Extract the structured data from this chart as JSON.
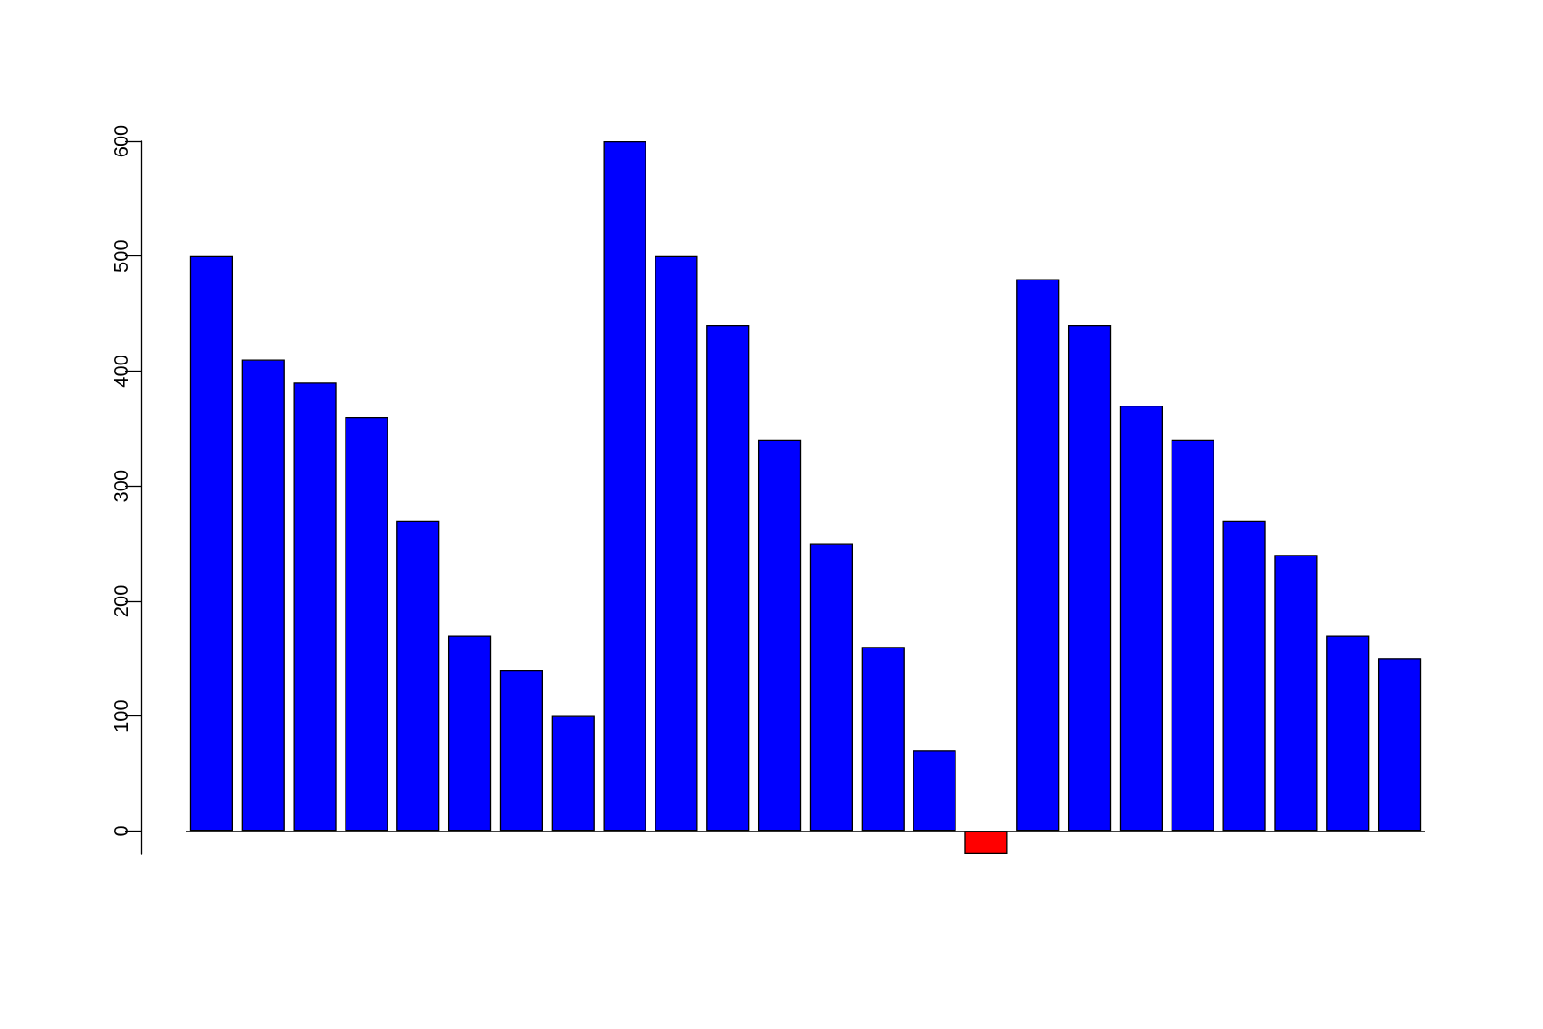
{
  "chart_data": {
    "type": "bar",
    "categories": [
      null,
      null,
      null,
      null,
      null,
      null,
      null,
      null,
      null,
      null,
      null,
      null,
      null,
      null,
      null,
      null,
      null,
      null,
      null,
      null,
      null,
      null,
      null,
      null
    ],
    "values": [
      500,
      410,
      390,
      360,
      270,
      170,
      140,
      100,
      600,
      500,
      440,
      340,
      250,
      160,
      70,
      -20,
      480,
      440,
      370,
      340,
      270,
      240,
      170,
      150
    ],
    "colors": [
      "#0000ff",
      "#0000ff",
      "#0000ff",
      "#0000ff",
      "#0000ff",
      "#0000ff",
      "#0000ff",
      "#0000ff",
      "#0000ff",
      "#0000ff",
      "#0000ff",
      "#0000ff",
      "#0000ff",
      "#0000ff",
      "#0000ff",
      "#ff0000",
      "#0000ff",
      "#0000ff",
      "#0000ff",
      "#0000ff",
      "#0000ff",
      "#0000ff",
      "#0000ff",
      "#0000ff"
    ],
    "ylim": [
      -20,
      600
    ],
    "yticks": [
      0,
      100,
      200,
      300,
      400,
      500,
      600
    ],
    "grid": false,
    "tick_labels": "y",
    "ref_lines": [
      {
        "axis": "y",
        "value": 0,
        "color": "#000000"
      }
    ]
  }
}
